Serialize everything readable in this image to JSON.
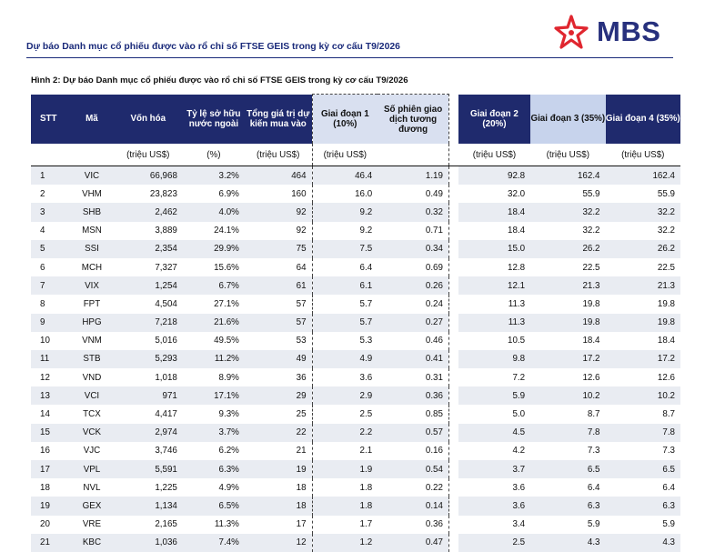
{
  "doc_title": "Dự báo Danh mục cổ phiếu được vào rổ chỉ số FTSE GEIS trong kỳ cơ cấu T9/2026",
  "logo_text": "MBS",
  "figure_caption": "Hình 2: Dự báo Danh mục cổ phiếu được vào rổ chỉ số FTSE GEIS trong kỳ cơ cấu T9/2026",
  "colors": {
    "header_bg": "#1f2a6d",
    "phase_light": "#d9e0f0",
    "phase3_light": "#c7d3ec",
    "logo_red": "#e0262f",
    "logo_navy": "#27307d"
  },
  "table": {
    "headers": {
      "stt": "STT",
      "ma": "Mã",
      "von_hoa": "Vốn hóa",
      "ty_le": "Tỷ lệ sở hữu nước ngoài",
      "tong_gia_tri": "Tổng giá trị dự kiến mua vào",
      "gd1": "Giai đoạn 1 (10%)",
      "so_phien": "Số phiên giao dịch tương đương",
      "gd2": "Giai đoạn 2 (20%)",
      "gd3": "Giai đoạn 3 (35%)",
      "gd4": "Giai đoạn 4 (35%)"
    },
    "units": {
      "von_hoa": "(triệu US$)",
      "ty_le": "(%)",
      "tong_gia_tri": "(triệu US$)",
      "gd1": "(triệu US$)",
      "gd2": "(triệu US$)",
      "gd3": "(triệu US$)",
      "gd4": "(triệu US$)"
    },
    "rows": [
      [
        "1",
        "VIC",
        "66,968",
        "3.2%",
        "464",
        "46.4",
        "1.19",
        "92.8",
        "162.4",
        "162.4"
      ],
      [
        "2",
        "VHM",
        "23,823",
        "6.9%",
        "160",
        "16.0",
        "0.49",
        "32.0",
        "55.9",
        "55.9"
      ],
      [
        "3",
        "SHB",
        "2,462",
        "4.0%",
        "92",
        "9.2",
        "0.32",
        "18.4",
        "32.2",
        "32.2"
      ],
      [
        "4",
        "MSN",
        "3,889",
        "24.1%",
        "92",
        "9.2",
        "0.71",
        "18.4",
        "32.2",
        "32.2"
      ],
      [
        "5",
        "SSI",
        "2,354",
        "29.9%",
        "75",
        "7.5",
        "0.34",
        "15.0",
        "26.2",
        "26.2"
      ],
      [
        "6",
        "MCH",
        "7,327",
        "15.6%",
        "64",
        "6.4",
        "0.69",
        "12.8",
        "22.5",
        "22.5"
      ],
      [
        "7",
        "VIX",
        "1,254",
        "6.7%",
        "61",
        "6.1",
        "0.26",
        "12.1",
        "21.3",
        "21.3"
      ],
      [
        "8",
        "FPT",
        "4,504",
        "27.1%",
        "57",
        "5.7",
        "0.24",
        "11.3",
        "19.8",
        "19.8"
      ],
      [
        "9",
        "HPG",
        "7,218",
        "21.6%",
        "57",
        "5.7",
        "0.27",
        "11.3",
        "19.8",
        "19.8"
      ],
      [
        "10",
        "VNM",
        "5,016",
        "49.5%",
        "53",
        "5.3",
        "0.46",
        "10.5",
        "18.4",
        "18.4"
      ],
      [
        "11",
        "STB",
        "5,293",
        "11.2%",
        "49",
        "4.9",
        "0.41",
        "9.8",
        "17.2",
        "17.2"
      ],
      [
        "12",
        "VND",
        "1,018",
        "8.9%",
        "36",
        "3.6",
        "0.31",
        "7.2",
        "12.6",
        "12.6"
      ],
      [
        "13",
        "VCI",
        "971",
        "17.1%",
        "29",
        "2.9",
        "0.36",
        "5.9",
        "10.2",
        "10.2"
      ],
      [
        "14",
        "TCX",
        "4,417",
        "9.3%",
        "25",
        "2.5",
        "0.85",
        "5.0",
        "8.7",
        "8.7"
      ],
      [
        "15",
        "VCK",
        "2,974",
        "3.7%",
        "22",
        "2.2",
        "0.57",
        "4.5",
        "7.8",
        "7.8"
      ],
      [
        "16",
        "VJC",
        "3,746",
        "6.2%",
        "21",
        "2.1",
        "0.16",
        "4.2",
        "7.3",
        "7.3"
      ],
      [
        "17",
        "VPL",
        "5,591",
        "6.3%",
        "19",
        "1.9",
        "0.54",
        "3.7",
        "6.5",
        "6.5"
      ],
      [
        "18",
        "NVL",
        "1,225",
        "4.9%",
        "18",
        "1.8",
        "0.22",
        "3.6",
        "6.4",
        "6.4"
      ],
      [
        "19",
        "GEX",
        "1,134",
        "6.5%",
        "18",
        "1.8",
        "0.14",
        "3.6",
        "6.3",
        "6.3"
      ],
      [
        "20",
        "VRE",
        "2,165",
        "11.3%",
        "17",
        "1.7",
        "0.36",
        "3.4",
        "5.9",
        "5.9"
      ],
      [
        "21",
        "KBC",
        "1,036",
        "7.4%",
        "12",
        "1.2",
        "0.47",
        "2.5",
        "4.3",
        "4.3"
      ]
    ]
  }
}
